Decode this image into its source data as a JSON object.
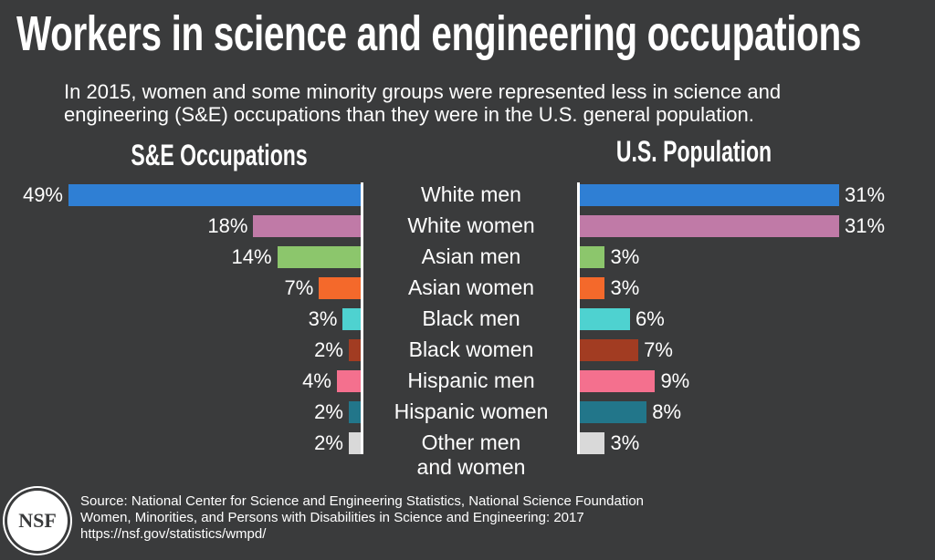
{
  "chart_data": {
    "type": "bar",
    "title": "Workers in science and engineering occupations",
    "subtitle": "In 2015, women and some minority groups were represented less in science and engineering (S&E) occupations than they were in the U.S. general population.",
    "categories": [
      "White men",
      "White women",
      "Asian men",
      "Asian women",
      "Black men",
      "Black women",
      "Hispanic men",
      "Hispanic women",
      "Other men\nand women"
    ],
    "colors": [
      "#2f7fd4",
      "#c07aa7",
      "#8cc66c",
      "#f4692b",
      "#4ed2d0",
      "#a23c22",
      "#f4708e",
      "#22768a",
      "#d9d9d9"
    ],
    "series": [
      {
        "name": "S&E Occupations",
        "values": [
          49,
          18,
          14,
          7,
          3,
          2,
          4,
          2,
          2
        ],
        "value_labels": [
          "49%",
          "18%",
          "14%",
          "7%",
          "3%",
          "2%",
          "4%",
          "2%",
          "2%"
        ]
      },
      {
        "name": "U.S. Population",
        "values": [
          31,
          31,
          3,
          3,
          6,
          7,
          9,
          8,
          3
        ],
        "value_labels": [
          "31%",
          "31%",
          "3%",
          "3%",
          "6%",
          "7%",
          "9%",
          "8%",
          "3%"
        ]
      }
    ],
    "logo": "NSF",
    "source": [
      "Source: National Center for Science and Engineering Statistics, National Science Foundation",
      "Women, Minorities, and Persons with Disabilities in Science and Engineering: 2017",
      "https://nsf.gov/statistics/wmpd/"
    ]
  }
}
